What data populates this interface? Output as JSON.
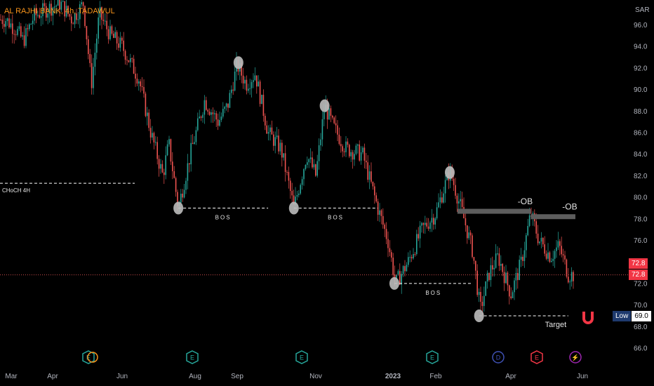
{
  "header": {
    "title": "AL RAJHI BANK, 4h, TADAWUL",
    "currency": "SAR"
  },
  "labels": {
    "choch": "CHoCH 4H",
    "bos": "BOS",
    "ob": "-OB",
    "target": "Target",
    "low_label": "Low",
    "low_value": "69.0",
    "last_price_1": "72.8",
    "last_price_2": "72.8"
  },
  "colors": {
    "up": "#26a69a",
    "down": "#ef5350",
    "accent_title": "#f7931a",
    "price_tag": "#f23645",
    "low_tag": "#1e3a6e",
    "ob_zone": "#5d5d5d",
    "pivot": "#bdbdbd"
  },
  "event_icons": [
    {
      "letter": "E",
      "kind": "earnings-icon"
    },
    {
      "letter": "E",
      "kind": "earnings-icon"
    },
    {
      "letter": "E",
      "kind": "earnings-icon"
    },
    {
      "letter": "E",
      "kind": "earnings-icon"
    },
    {
      "letter": "D",
      "kind": "dividend-icon"
    },
    {
      "letter": "E",
      "kind": "earnings-icon"
    },
    {
      "letter": "⚡",
      "kind": "split-icon"
    }
  ],
  "chart_data": {
    "type": "candlestick",
    "title": "AL RAJHI BANK, 4h, TADAWUL",
    "ylabel": "SAR",
    "ylim": [
      64.5,
      98.5
    ],
    "y_ticks": [
      66.0,
      68.0,
      70.0,
      72.0,
      74.0,
      76.0,
      78.0,
      80.0,
      82.0,
      84.0,
      86.0,
      88.0,
      90.0,
      92.0,
      94.0,
      96.0
    ],
    "x_ticks": [
      "Mar",
      "Apr",
      "Jun",
      "Aug",
      "Sep",
      "Nov",
      "2023",
      "Feb",
      "Apr",
      "Jun"
    ],
    "price_path": [
      [
        "2022-02-25",
        96.5
      ],
      [
        "2022-03-05",
        95.5
      ],
      [
        "2022-03-10",
        94.5
      ],
      [
        "2022-03-18",
        96.8
      ],
      [
        "2022-03-28",
        97.5
      ],
      [
        "2022-04-08",
        98.0
      ],
      [
        "2022-04-18",
        96.5
      ],
      [
        "2022-04-28",
        98.0
      ],
      [
        "2022-05-05",
        90.5
      ],
      [
        "2022-05-12",
        97.0
      ],
      [
        "2022-05-22",
        95.0
      ],
      [
        "2022-06-01",
        94.0
      ],
      [
        "2022-06-15",
        91.0
      ],
      [
        "2022-06-25",
        86.0
      ],
      [
        "2022-07-05",
        82.0
      ],
      [
        "2022-07-10",
        85.0
      ],
      [
        "2022-07-18",
        79.0
      ],
      [
        "2022-07-28",
        84.0
      ],
      [
        "2022-08-08",
        89.0
      ],
      [
        "2022-08-18",
        87.0
      ],
      [
        "2022-08-25",
        88.5
      ],
      [
        "2022-09-01",
        92.3
      ],
      [
        "2022-09-08",
        90.5
      ],
      [
        "2022-09-15",
        91.5
      ],
      [
        "2022-09-25",
        86.0
      ],
      [
        "2022-10-05",
        84.5
      ],
      [
        "2022-10-15",
        79.0
      ],
      [
        "2022-10-25",
        84.0
      ],
      [
        "2022-11-01",
        82.0
      ],
      [
        "2022-11-08",
        88.5
      ],
      [
        "2022-11-15",
        86.5
      ],
      [
        "2022-11-25",
        84.5
      ],
      [
        "2022-12-08",
        84.0
      ],
      [
        "2022-12-20",
        79.0
      ],
      [
        "2022-12-28",
        76.0
      ],
      [
        "2023-01-03",
        72.0
      ],
      [
        "2023-01-12",
        74.0
      ],
      [
        "2023-01-22",
        77.0
      ],
      [
        "2023-02-01",
        78.5
      ],
      [
        "2023-02-12",
        82.5
      ],
      [
        "2023-02-22",
        78.5
      ],
      [
        "2023-03-02",
        75.0
      ],
      [
        "2023-03-08",
        69.5
      ],
      [
        "2023-03-15",
        73.0
      ],
      [
        "2023-03-22",
        74.5
      ],
      [
        "2023-04-01",
        71.0
      ],
      [
        "2023-04-10",
        74.0
      ],
      [
        "2023-04-18",
        78.5
      ],
      [
        "2023-04-25",
        76.0
      ],
      [
        "2023-05-05",
        74.5
      ],
      [
        "2023-05-12",
        75.5
      ],
      [
        "2023-05-20",
        72.8
      ]
    ],
    "swing_points": [
      {
        "date": "2022-07-18",
        "price": 79.0
      },
      {
        "date": "2022-09-02",
        "price": 92.5
      },
      {
        "date": "2022-10-15",
        "price": 79.0
      },
      {
        "date": "2022-11-08",
        "price": 88.5
      },
      {
        "date": "2023-01-02",
        "price": 72.0
      },
      {
        "date": "2023-02-12",
        "price": 82.3
      },
      {
        "date": "2023-03-07",
        "price": 69.0
      }
    ],
    "choch_level": 81.3,
    "bos_levels": [
      {
        "from": "2022-07-18",
        "to": "2022-09-25",
        "price": 79.0
      },
      {
        "from": "2022-10-15",
        "to": "2022-12-20",
        "price": 79.0
      },
      {
        "from": "2023-01-02",
        "to": "2023-03-02",
        "price": 72.0
      }
    ],
    "order_blocks": [
      {
        "from": "2023-02-18",
        "to": "2023-04-18",
        "price": 78.7
      },
      {
        "from": "2023-04-18",
        "to": "2023-05-26",
        "price": 78.2
      }
    ],
    "target_level": {
      "from": "2023-03-07",
      "to": "2023-05-20",
      "price": 69.0
    },
    "last_price": 72.8,
    "low": 69.0
  }
}
